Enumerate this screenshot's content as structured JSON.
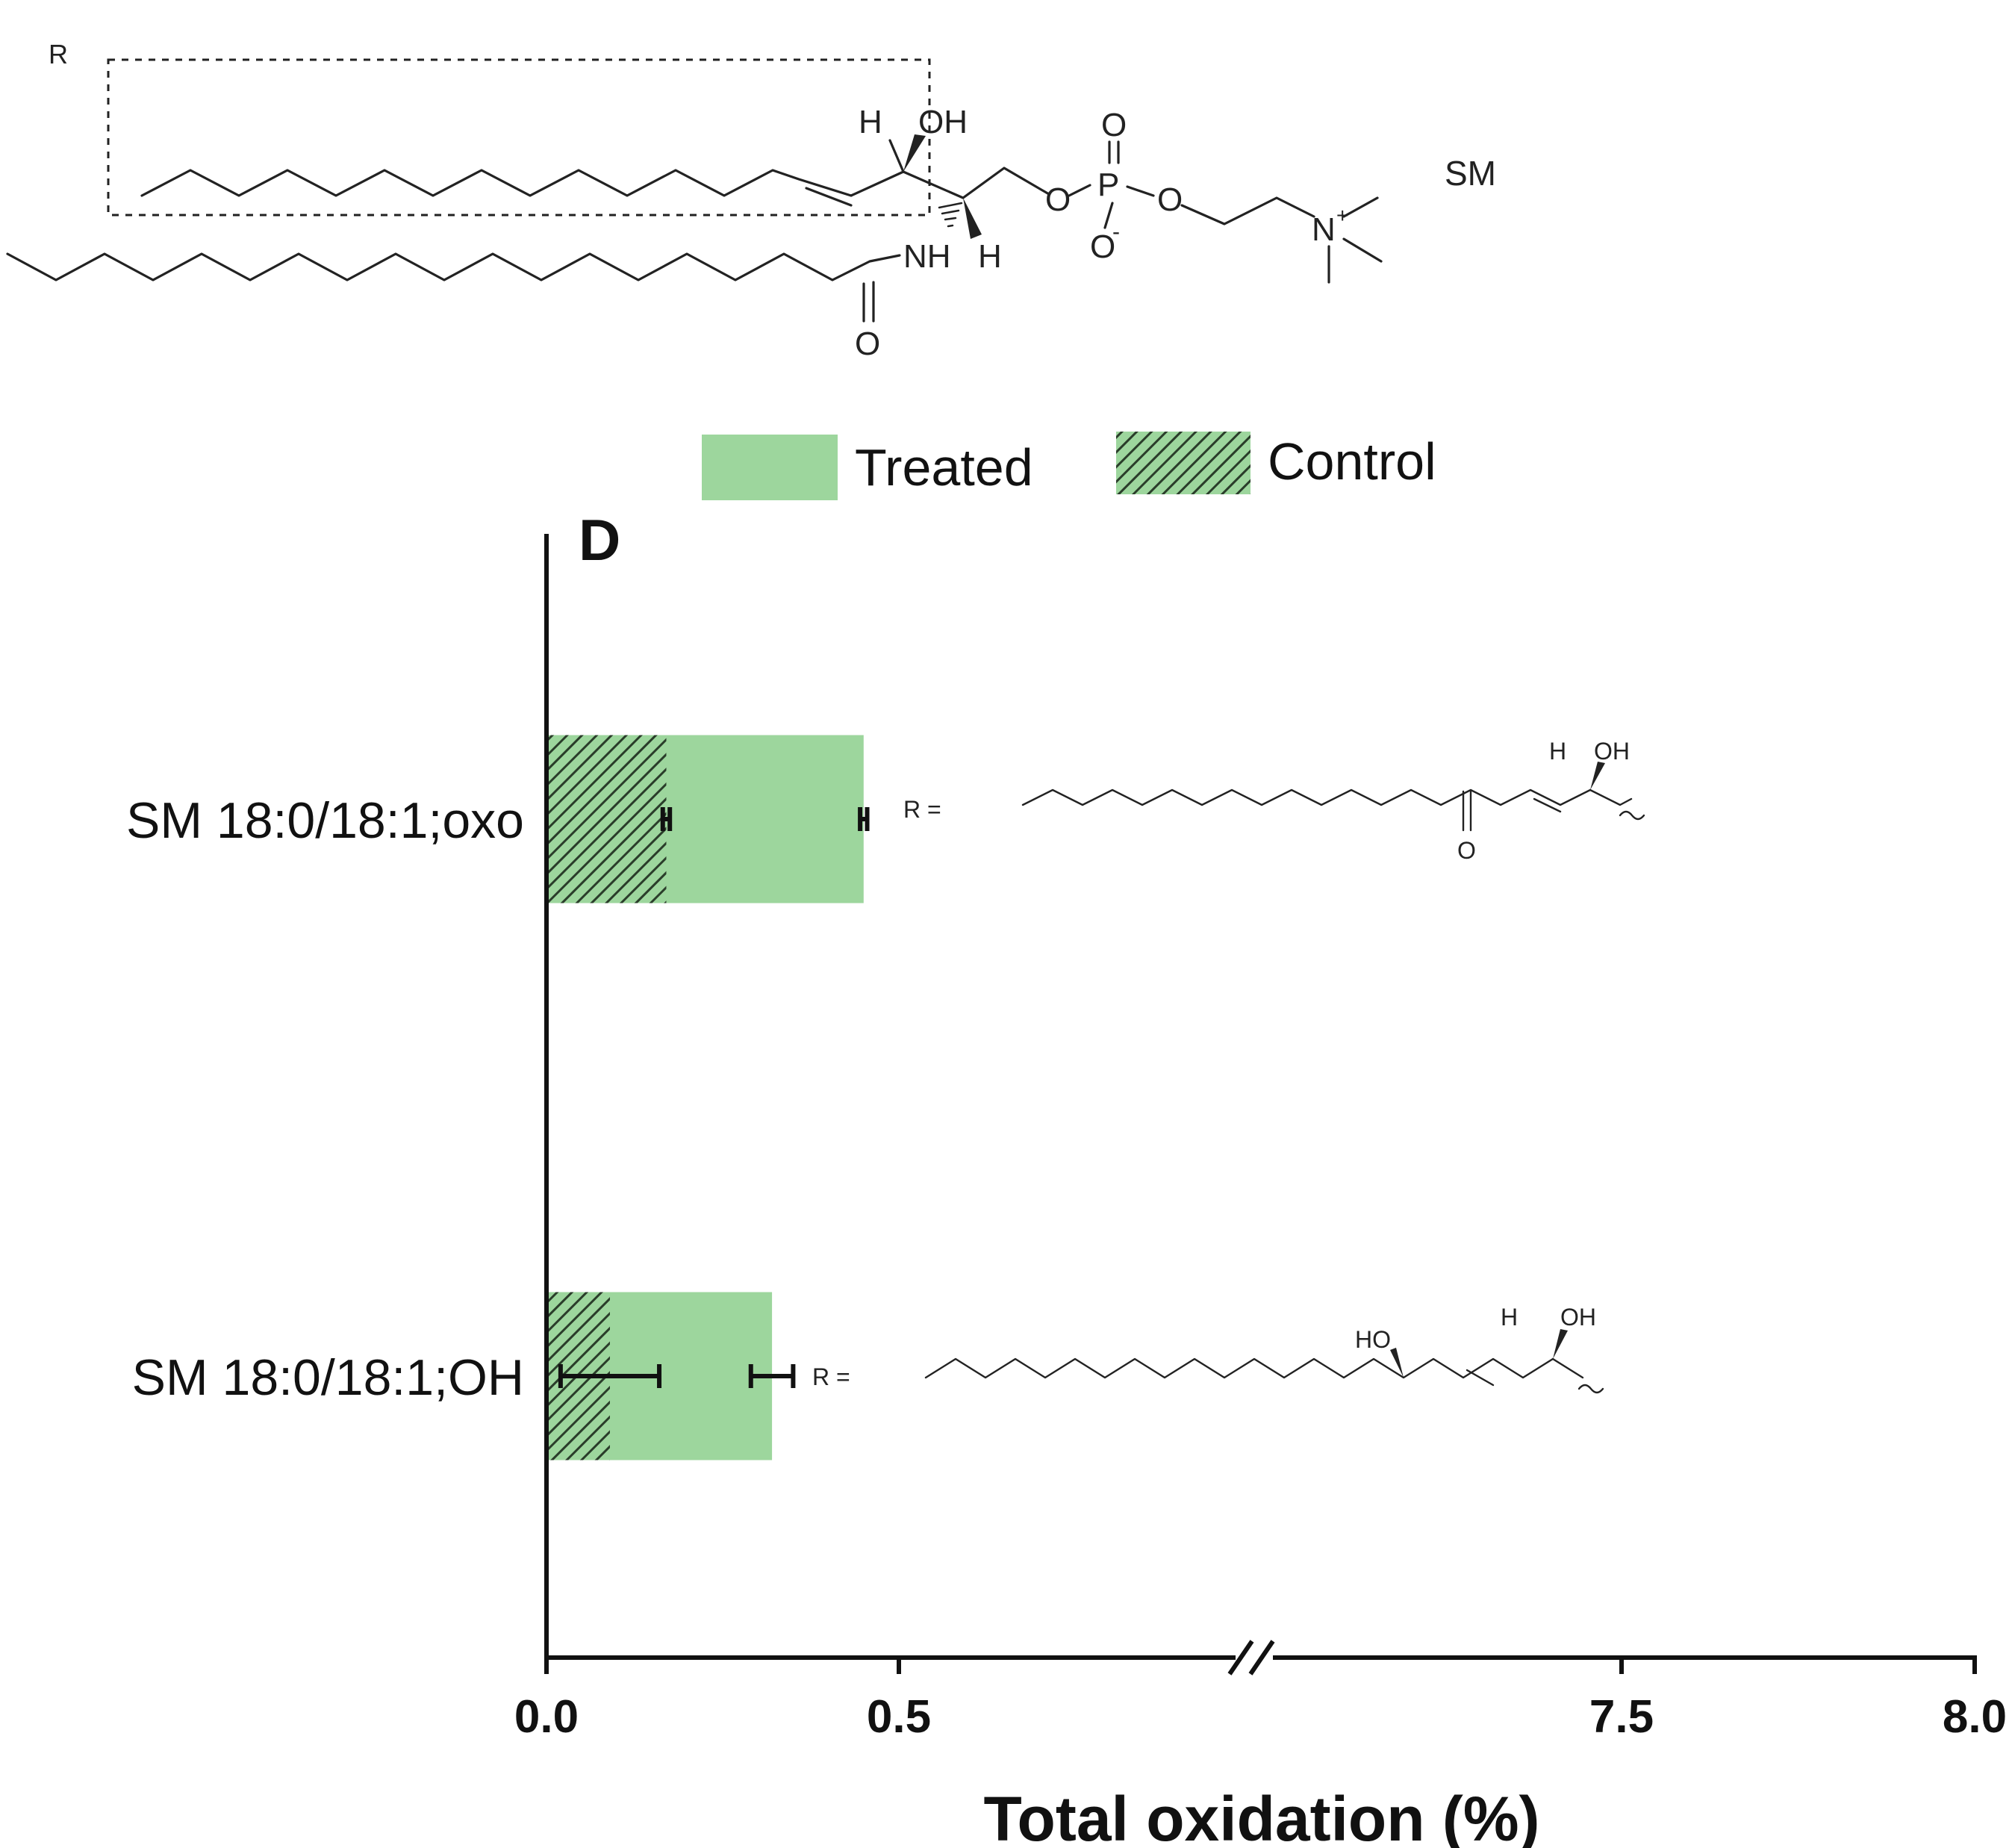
{
  "panel_label": "D",
  "structure": {
    "r_label": "R",
    "sm_label": "SM",
    "atoms": {
      "h_top": "H",
      "oh_top": "OH",
      "o_phos": "O",
      "o_left": "O",
      "p": "P",
      "o_right": "O",
      "o_minus": "O",
      "minus_sign": "-",
      "n_plus": "N",
      "plus_sign": "+",
      "nh": "NH",
      "h_bottom": "H",
      "o_amide": "O"
    }
  },
  "legend": {
    "treated": "Treated",
    "control": "Control"
  },
  "r_structures": {
    "eq_label": "R =",
    "oxo": {
      "h": "H",
      "oh": "OH",
      "o": "O"
    },
    "oh": {
      "h": "H",
      "oh": "OH",
      "ho": "HO"
    }
  },
  "colors": {
    "treated_fill": "#9dd69d",
    "control_fill": "#9dd69d",
    "control_hatch": "#2a3d2a",
    "axis": "#111111",
    "text": "#111111"
  },
  "chart_data": {
    "type": "bar",
    "orientation": "horizontal",
    "categories": [
      "SM 18:0/18:1;oxo",
      "SM 18:0/18:1;OH"
    ],
    "series": [
      {
        "name": "Treated",
        "values": [
          0.45,
          0.32
        ],
        "errors": [
          0.005,
          0.03
        ]
      },
      {
        "name": "Control",
        "values": [
          0.17,
          0.09
        ],
        "errors": [
          0.005,
          0.07
        ]
      }
    ],
    "xlabel": "Total oxidation (%)",
    "xlim": [
      0.0,
      8.0
    ],
    "axis_break": [
      0.5,
      7.5
    ],
    "xticks": [
      "0.0",
      "0.5",
      "7.5",
      "8.0"
    ],
    "xtick_values": [
      0.0,
      0.5,
      7.5,
      8.0
    ],
    "legend_position": "top-center",
    "grid": false
  }
}
